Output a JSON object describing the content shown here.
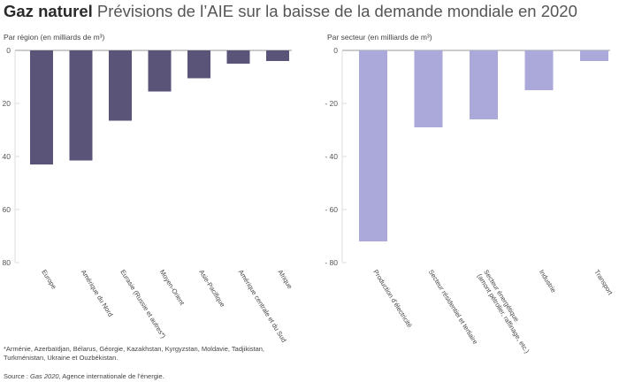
{
  "title_bold": "Gaz naturel",
  "title_rest": "Prévisions de l’AIE sur la baisse de la demande mondiale en 2020",
  "footnote": "*Arménie, Azerbaïdjan, Bélarus, Géorgie, Kazakhstan, Kyrgyzstan, Moldavie, Tadjikistan, Turkménistan, Ukraine et Ouzbékistan.",
  "source_prefix": "Source : ",
  "source_title": "Gas 2020",
  "source_rest": ", Agence internationale de l’énergie.",
  "colors": {
    "region": "#595478",
    "sector": "#aba8da",
    "axis": "#999999",
    "grid": "#dddddd"
  },
  "chart_data": [
    {
      "type": "bar",
      "title": "Par région (en milliards de m³)",
      "ylim": [
        -80,
        0
      ],
      "yticks": [
        0,
        -20,
        -40,
        -60,
        -80
      ],
      "ytick_labels": [
        "0",
        "- 20",
        "- 40",
        "- 60",
        "- 80"
      ],
      "categories": [
        "Europe",
        "Amérique du Nord",
        "Eurasie (Russie et autres*)",
        "Moyen-Orient",
        "Asie-Pacifique",
        "Amérique centrale et du Sud",
        "Afrique"
      ],
      "values": [
        -43,
        -41.5,
        -26.5,
        -15.5,
        -10.5,
        -5,
        -4
      ]
    },
    {
      "type": "bar",
      "title": "Par secteur (en milliards de m³)",
      "ylim": [
        -80,
        0
      ],
      "yticks": [
        0,
        -20,
        -40,
        -60,
        -80
      ],
      "ytick_labels": [
        "0",
        "- 20",
        "- 40",
        "- 60",
        "- 80"
      ],
      "categories": [
        "Production d’électricité",
        "Secteur résidentiel et tertiaire",
        [
          "Secteur énergétique",
          "(amont pétrolier, raffinage, etc.)"
        ],
        "Industrie",
        "Transport"
      ],
      "values": [
        -72,
        -29,
        -26,
        -15,
        -4
      ]
    }
  ]
}
